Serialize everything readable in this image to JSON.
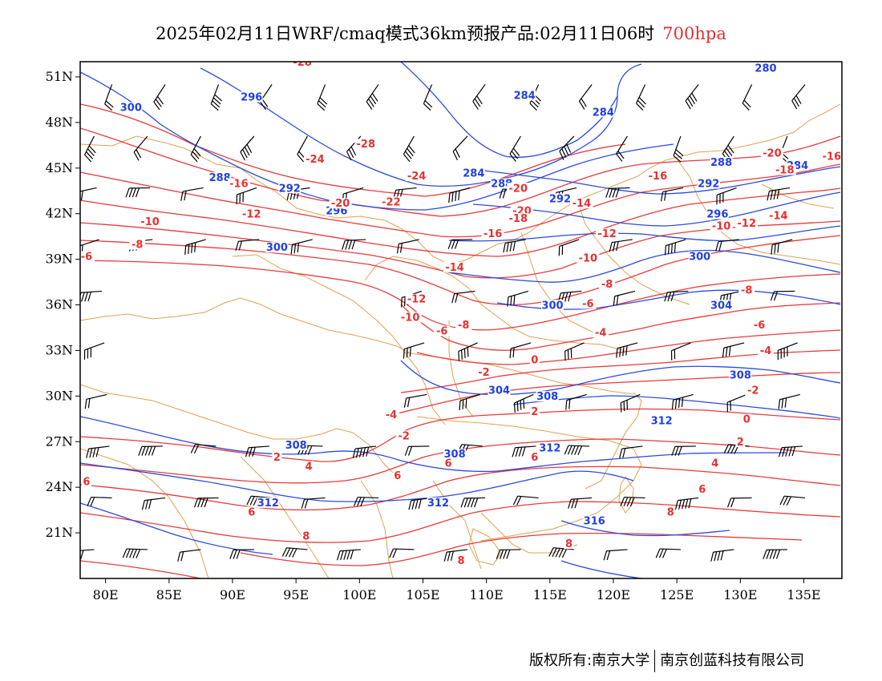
{
  "title": {
    "main": "2025年02月11日WRF/cmaq模式36km预报产品:02月11日06时",
    "level": "700hpa"
  },
  "axes": {
    "lat_labels": [
      "51N",
      "48N",
      "45N",
      "42N",
      "39N",
      "36N",
      "33N",
      "30N",
      "27N",
      "24N",
      "21N"
    ],
    "lon_labels": [
      "80E",
      "85E",
      "90E",
      "95E",
      "100E",
      "105E",
      "110E",
      "115E",
      "120E",
      "125E",
      "130E",
      "135E"
    ],
    "lat_range": [
      18,
      52
    ],
    "lon_range": [
      78,
      138
    ]
  },
  "colors": {
    "geopotential": "#2040e0",
    "temperature": "#e83030",
    "borders": "#e09040",
    "wind": "#000000"
  },
  "height_labels": [
    {
      "text": "300",
      "lon": 82,
      "lat": 48.8
    },
    {
      "text": "296",
      "lon": 91.5,
      "lat": 49.5
    },
    {
      "text": "284",
      "lon": 113,
      "lat": 49.6
    },
    {
      "text": "284",
      "lon": 119.2,
      "lat": 48.5
    },
    {
      "text": "280",
      "lon": 132,
      "lat": 51.4
    },
    {
      "text": "288",
      "lon": 128.5,
      "lat": 45.2
    },
    {
      "text": "284",
      "lon": 109,
      "lat": 44.5
    },
    {
      "text": "288",
      "lon": 111.2,
      "lat": 43.8
    },
    {
      "text": "292",
      "lon": 115.8,
      "lat": 42.8
    },
    {
      "text": "292",
      "lon": 127.5,
      "lat": 43.8
    },
    {
      "text": "296",
      "lon": 128.2,
      "lat": 41.8
    },
    {
      "text": "300",
      "lon": 126.8,
      "lat": 39.0
    },
    {
      "text": "304",
      "lon": 128.5,
      "lat": 35.8
    },
    {
      "text": "300",
      "lon": 115.2,
      "lat": 35.8
    },
    {
      "text": "308",
      "lon": 130,
      "lat": 31.2
    },
    {
      "text": "304",
      "lon": 111,
      "lat": 30.2
    },
    {
      "text": "308",
      "lon": 114.8,
      "lat": 29.8
    },
    {
      "text": "312",
      "lon": 123.8,
      "lat": 28.2
    },
    {
      "text": "308",
      "lon": 95,
      "lat": 26.6
    },
    {
      "text": "308",
      "lon": 107.5,
      "lat": 26.0
    },
    {
      "text": "312",
      "lon": 115,
      "lat": 26.4
    },
    {
      "text": "312",
      "lon": 92.8,
      "lat": 22.8
    },
    {
      "text": "312",
      "lon": 106.2,
      "lat": 22.8
    },
    {
      "text": "316",
      "lon": 118.5,
      "lat": 21.6
    },
    {
      "text": "288",
      "lon": 89,
      "lat": 44.2
    },
    {
      "text": "292",
      "lon": 94.5,
      "lat": 43.5
    },
    {
      "text": "296",
      "lon": 98.2,
      "lat": 42.0
    },
    {
      "text": "300",
      "lon": 93.5,
      "lat": 39.6
    },
    {
      "text": "284",
      "lon": 134.5,
      "lat": 45.0
    }
  ],
  "temperature_labels": [
    {
      "text": "-28",
      "lon": 95.5,
      "lat": 51.8
    },
    {
      "text": "-28",
      "lon": 100.5,
      "lat": 46.4
    },
    {
      "text": "-24",
      "lon": 96.5,
      "lat": 45.4
    },
    {
      "text": "-24",
      "lon": 104.5,
      "lat": 44.3
    },
    {
      "text": "-22",
      "lon": 102.5,
      "lat": 42.6
    },
    {
      "text": "-20",
      "lon": 98.5,
      "lat": 42.5
    },
    {
      "text": "-16",
      "lon": 90.5,
      "lat": 43.8
    },
    {
      "text": "-12",
      "lon": 91.5,
      "lat": 41.8
    },
    {
      "text": "-10",
      "lon": 83.5,
      "lat": 41.3
    },
    {
      "text": "-8",
      "lon": 82.5,
      "lat": 39.8
    },
    {
      "text": "-6",
      "lon": 78.5,
      "lat": 39.0
    },
    {
      "text": "-20",
      "lon": 112.5,
      "lat": 43.5
    },
    {
      "text": "-20",
      "lon": 112.8,
      "lat": 42.0
    },
    {
      "text": "-18",
      "lon": 112.5,
      "lat": 41.5
    },
    {
      "text": "-16",
      "lon": 110.5,
      "lat": 40.5
    },
    {
      "text": "-14",
      "lon": 117.5,
      "lat": 42.5
    },
    {
      "text": "-16",
      "lon": 123.5,
      "lat": 44.3
    },
    {
      "text": "-12",
      "lon": 119.5,
      "lat": 40.5
    },
    {
      "text": "-10",
      "lon": 118,
      "lat": 38.9
    },
    {
      "text": "-14",
      "lon": 107.5,
      "lat": 38.3
    },
    {
      "text": "-12",
      "lon": 104.5,
      "lat": 36.2
    },
    {
      "text": "-10",
      "lon": 104,
      "lat": 35.0
    },
    {
      "text": "-6",
      "lon": 106.5,
      "lat": 34.1
    },
    {
      "text": "-8",
      "lon": 108.2,
      "lat": 34.5
    },
    {
      "text": "-8",
      "lon": 119.5,
      "lat": 37.2
    },
    {
      "text": "-6",
      "lon": 118,
      "lat": 35.9
    },
    {
      "text": "-4",
      "lon": 119,
      "lat": 34.0
    },
    {
      "text": "-2",
      "lon": 109.8,
      "lat": 31.4
    },
    {
      "text": "0",
      "lon": 113.8,
      "lat": 32.2
    },
    {
      "text": "-20",
      "lon": 132.5,
      "lat": 45.8
    },
    {
      "text": "-18",
      "lon": 133.5,
      "lat": 44.7
    },
    {
      "text": "-16",
      "lon": 137.2,
      "lat": 45.6
    },
    {
      "text": "-14",
      "lon": 133,
      "lat": 41.7
    },
    {
      "text": "-10",
      "lon": 128.5,
      "lat": 41.0
    },
    {
      "text": "-12",
      "lon": 130.5,
      "lat": 41.2
    },
    {
      "text": "-8",
      "lon": 130.5,
      "lat": 36.8
    },
    {
      "text": "-6",
      "lon": 131.5,
      "lat": 34.5
    },
    {
      "text": "-4",
      "lon": 132,
      "lat": 32.8
    },
    {
      "text": "-2",
      "lon": 131,
      "lat": 30.2
    },
    {
      "text": "0",
      "lon": 130.5,
      "lat": 28.3
    },
    {
      "text": "2",
      "lon": 130,
      "lat": 26.8
    },
    {
      "text": "4",
      "lon": 128,
      "lat": 25.4
    },
    {
      "text": "6",
      "lon": 127,
      "lat": 23.7
    },
    {
      "text": "8",
      "lon": 124.5,
      "lat": 22.2
    },
    {
      "text": "-4",
      "lon": 102.5,
      "lat": 28.6
    },
    {
      "text": "-2",
      "lon": 103.5,
      "lat": 27.2
    },
    {
      "text": "2",
      "lon": 113.8,
      "lat": 28.8
    },
    {
      "text": "2",
      "lon": 93.5,
      "lat": 25.8
    },
    {
      "text": "4",
      "lon": 96,
      "lat": 25.2
    },
    {
      "text": "6",
      "lon": 103,
      "lat": 24.6
    },
    {
      "text": "6",
      "lon": 107,
      "lat": 25.4
    },
    {
      "text": "6",
      "lon": 113.8,
      "lat": 25.8
    },
    {
      "text": "6",
      "lon": 91.5,
      "lat": 22.2
    },
    {
      "text": "8",
      "lon": 95.8,
      "lat": 20.6
    },
    {
      "text": "8",
      "lon": 116.5,
      "lat": 20.1
    },
    {
      "text": "8",
      "lon": 108,
      "lat": 19.0
    },
    {
      "text": "6",
      "lon": 78.5,
      "lat": 24.2
    }
  ],
  "footer": {
    "copyright": "版权所有:南京大学",
    "company": "南京创蓝科技有限公司"
  }
}
